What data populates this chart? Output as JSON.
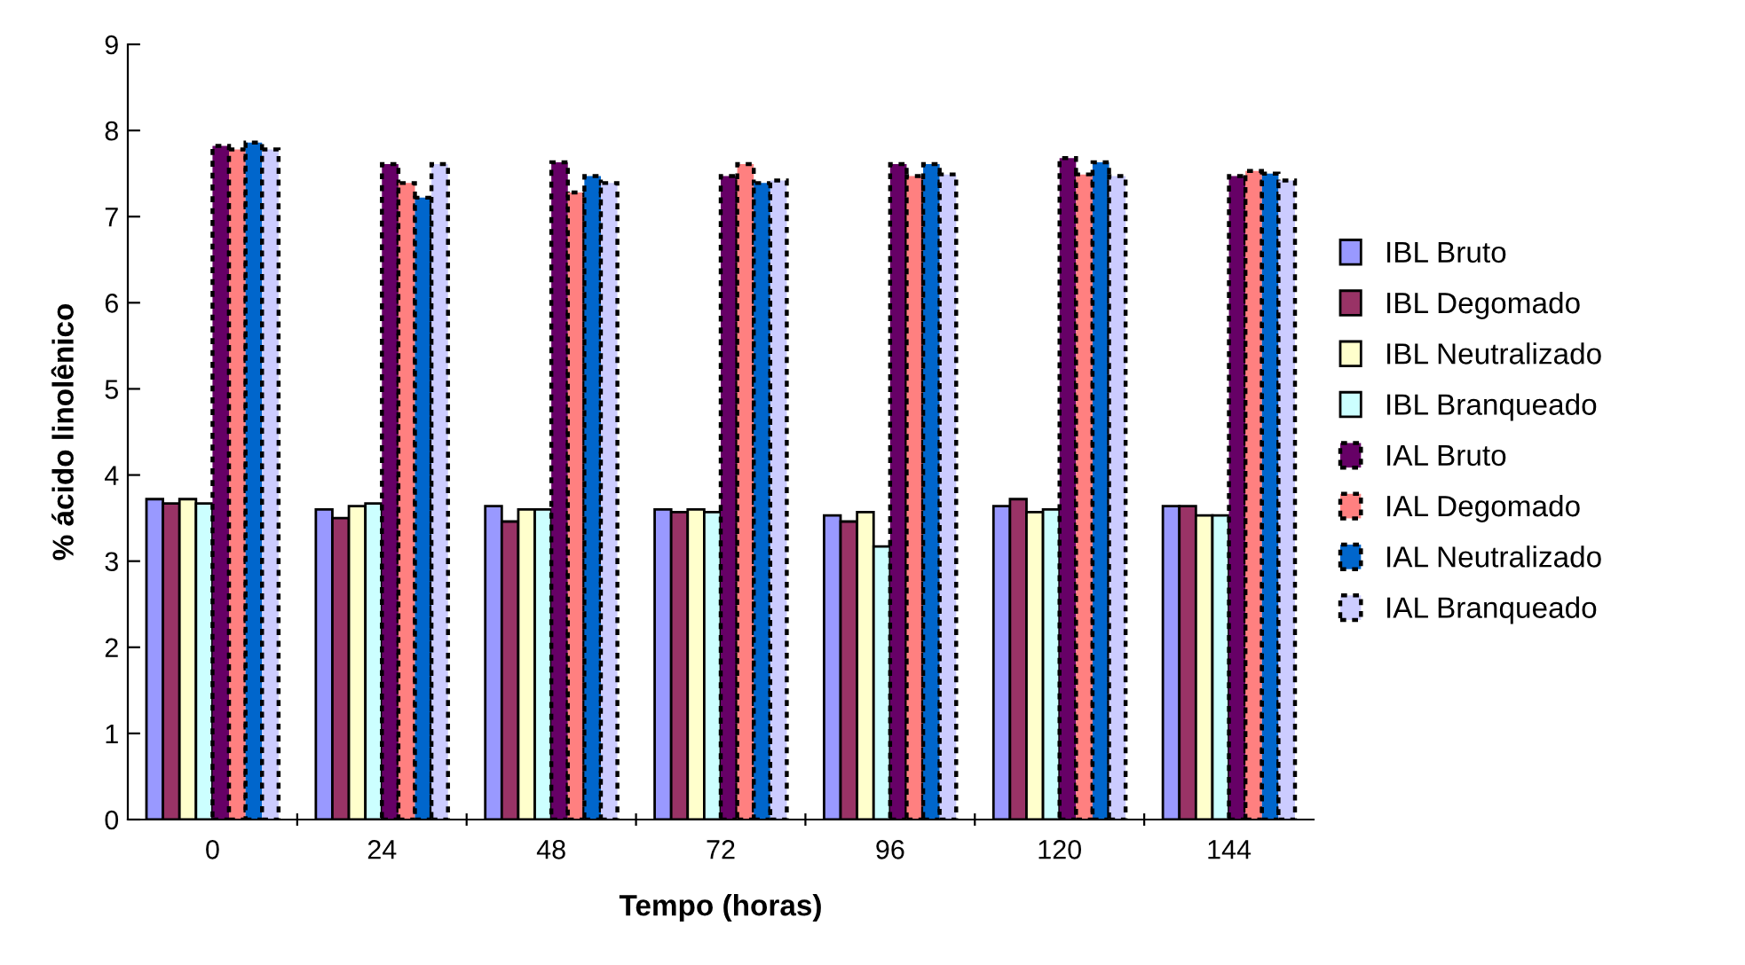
{
  "chart_data": {
    "type": "bar",
    "xlabel": "Tempo (horas)",
    "ylabel": "% ácido linolênico",
    "categories": [
      "0",
      "24",
      "48",
      "72",
      "96",
      "120",
      "144"
    ],
    "ylim": [
      0,
      9
    ],
    "yticks": [
      0,
      1,
      2,
      3,
      4,
      5,
      6,
      7,
      8,
      9
    ],
    "grid": false,
    "legend": "right",
    "series": [
      {
        "name": "IBL Bruto",
        "color": "#9999ff",
        "line_style": "solid",
        "values": [
          3.72,
          3.6,
          3.64,
          3.6,
          3.53,
          3.64,
          3.64
        ]
      },
      {
        "name": "IBL Degomado",
        "color": "#993366",
        "line_style": "solid",
        "values": [
          3.67,
          3.5,
          3.46,
          3.57,
          3.46,
          3.72,
          3.64
        ]
      },
      {
        "name": "IBL Neutralizado",
        "color": "#ffffcc",
        "line_style": "solid",
        "values": [
          3.72,
          3.64,
          3.6,
          3.6,
          3.57,
          3.57,
          3.53
        ]
      },
      {
        "name": "IBL Branqueado",
        "color": "#ccffff",
        "line_style": "solid",
        "values": [
          3.67,
          3.67,
          3.6,
          3.57,
          3.17,
          3.6,
          3.53
        ]
      },
      {
        "name": "IAL Bruto",
        "color": "#660066",
        "line_style": "dotted",
        "values": [
          7.82,
          7.61,
          7.63,
          7.47,
          7.61,
          7.68,
          7.47
        ]
      },
      {
        "name": "IAL Degomado",
        "color": "#ff8080",
        "line_style": "dotted",
        "values": [
          7.78,
          7.39,
          7.28,
          7.61,
          7.47,
          7.49,
          7.53
        ]
      },
      {
        "name": "IAL Neutralizado",
        "color": "#0066cc",
        "line_style": "dotted",
        "values": [
          7.86,
          7.22,
          7.47,
          7.39,
          7.61,
          7.63,
          7.5
        ]
      },
      {
        "name": "IAL Branqueado",
        "color": "#ccccff",
        "line_style": "dotted",
        "values": [
          7.78,
          7.61,
          7.39,
          7.42,
          7.49,
          7.47,
          7.42
        ]
      }
    ]
  }
}
